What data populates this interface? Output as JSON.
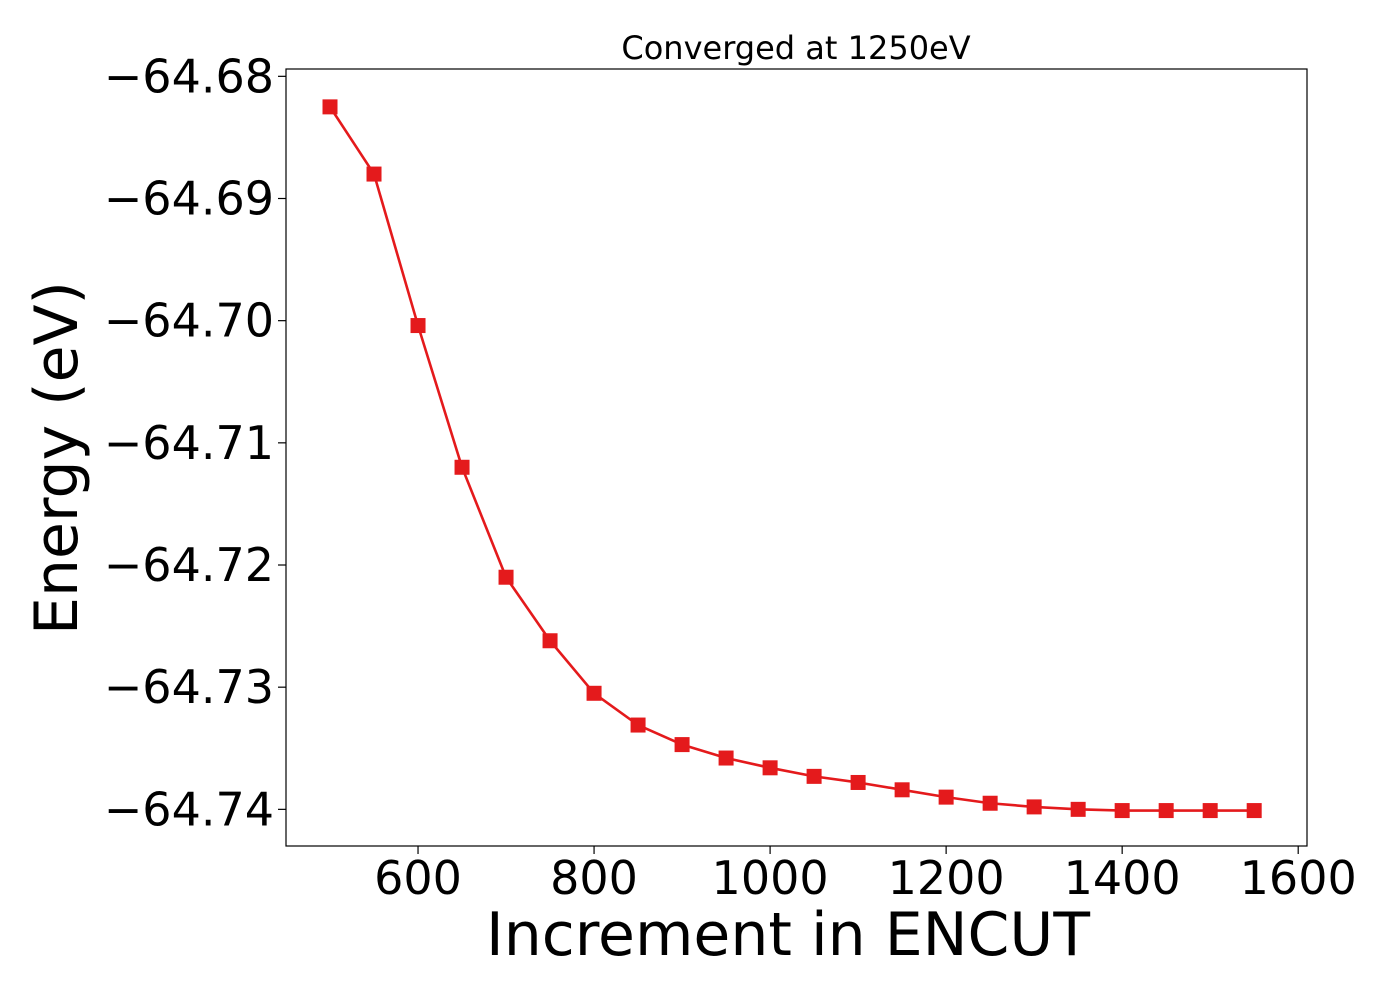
{
  "chart_data": {
    "type": "line",
    "title": "Converged at 1250eV",
    "xlabel": "Increment in ENCUT",
    "ylabel": "Energy (eV)",
    "xlim": [
      450,
      1610
    ],
    "ylim": [
      -64.743,
      -64.6794
    ],
    "xticks": [
      600,
      800,
      1000,
      1200,
      1400,
      1600
    ],
    "yticks": [
      -64.68,
      -64.69,
      -64.7,
      -64.71,
      -64.72,
      -64.73,
      -64.74
    ],
    "xtick_labels": [
      "600",
      "800",
      "1000",
      "1200",
      "1400",
      "1600"
    ],
    "ytick_labels": [
      "−64.68",
      "−64.69",
      "−64.70",
      "−64.71",
      "−64.72",
      "−64.73",
      "−64.74"
    ],
    "grid": false,
    "series": [
      {
        "color": "#e41a1c",
        "marker": "square",
        "x": [
          500,
          550,
          600,
          650,
          700,
          750,
          800,
          850,
          900,
          950,
          1000,
          1050,
          1100,
          1150,
          1200,
          1250,
          1300,
          1350,
          1400,
          1450,
          1500,
          1550
        ],
        "y": [
          -64.6825,
          -64.688,
          -64.7004,
          -64.712,
          -64.721,
          -64.7262,
          -64.7305,
          -64.7331,
          -64.7347,
          -64.7358,
          -64.7366,
          -64.7373,
          -64.7378,
          -64.7384,
          -64.739,
          -64.7395,
          -64.7398,
          -64.74,
          -64.7401,
          -64.7401,
          -64.7401,
          -64.7401
        ]
      }
    ]
  }
}
